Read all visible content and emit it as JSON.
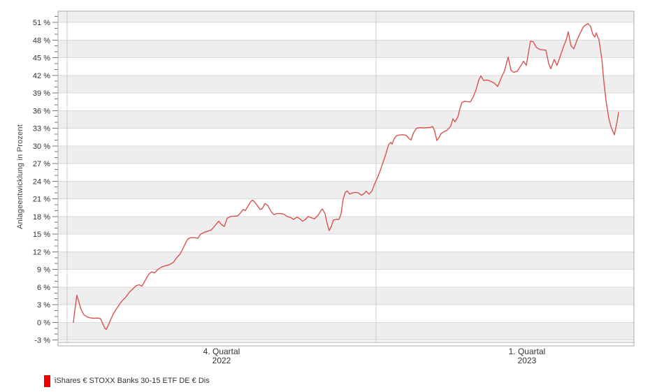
{
  "chart_data": {
    "type": "line",
    "title": "",
    "ylabel": "Anlageentwicklung in Prozent",
    "xlabel": "",
    "grid": true,
    "legend_position": "bottom-left",
    "y_axis": {
      "min": -3.4,
      "max": 52.9,
      "tick_step": 3,
      "minor_tick_step": 1,
      "tick_suffix": " %",
      "ticks": [
        -3,
        0,
        3,
        6,
        9,
        12,
        15,
        18,
        21,
        24,
        27,
        30,
        33,
        36,
        39,
        42,
        45,
        48,
        51
      ],
      "shaded_bands": [
        [
          -3,
          0
        ],
        [
          3,
          6
        ],
        [
          9,
          12
        ],
        [
          15,
          18
        ],
        [
          21,
          24
        ],
        [
          27,
          30
        ],
        [
          33,
          36
        ],
        [
          39,
          42
        ],
        [
          45,
          48
        ],
        [
          51,
          52.9
        ]
      ]
    },
    "x_axis": {
      "unit": "time (quarters)",
      "gridlines": [
        0.0158,
        0.5522
      ],
      "labels": [
        {
          "line1": "4. Quartal",
          "line2": "2022",
          "pos": 0.284
        },
        {
          "line1": "1. Quartal",
          "line2": "2023",
          "pos": 0.8143
        }
      ]
    },
    "colors": {
      "band": "#eeeeee",
      "h_gridline": "#d9d9d9",
      "v_gridline": "#cccccc",
      "frame": "#a8a8a8",
      "tick": "#777777",
      "tick_label": "#333333"
    },
    "legend": {
      "swatch_color": "#ee0000"
    },
    "series": [
      {
        "name": "iShares € STOXX Banks 30-15 ETF DE € Dis",
        "color": "#d9534f",
        "points": [
          [
            0.0267,
            0
          ],
          [
            0.0291,
            2
          ],
          [
            0.0328,
            4.6
          ],
          [
            0.0364,
            3.4
          ],
          [
            0.04,
            2.2
          ],
          [
            0.0449,
            1.3
          ],
          [
            0.051,
            0.9
          ],
          [
            0.057,
            0.75
          ],
          [
            0.0631,
            0.7
          ],
          [
            0.0692,
            0.75
          ],
          [
            0.074,
            0.6
          ],
          [
            0.0777,
            -0.2
          ],
          [
            0.0813,
            -1
          ],
          [
            0.0837,
            -1.2
          ],
          [
            0.0874,
            -0.5
          ],
          [
            0.091,
            0.4
          ],
          [
            0.0959,
            1.4
          ],
          [
            0.1007,
            2.2
          ],
          [
            0.1056,
            2.9
          ],
          [
            0.1117,
            3.7
          ],
          [
            0.1177,
            4.3
          ],
          [
            0.1238,
            5.1
          ],
          [
            0.1299,
            5.7
          ],
          [
            0.1359,
            6.25
          ],
          [
            0.1408,
            6.4
          ],
          [
            0.1456,
            6.15
          ],
          [
            0.1517,
            7.2
          ],
          [
            0.1578,
            8.2
          ],
          [
            0.1626,
            8.6
          ],
          [
            0.1675,
            8.4
          ],
          [
            0.1735,
            9
          ],
          [
            0.1796,
            9.4
          ],
          [
            0.1857,
            9.6
          ],
          [
            0.193,
            9.8
          ],
          [
            0.2002,
            10.2
          ],
          [
            0.2063,
            11
          ],
          [
            0.2124,
            11.7
          ],
          [
            0.2172,
            12.6
          ],
          [
            0.2221,
            13.6
          ],
          [
            0.2257,
            14.2
          ],
          [
            0.2306,
            14.4
          ],
          [
            0.2366,
            14.4
          ],
          [
            0.2427,
            14.3
          ],
          [
            0.2476,
            15
          ],
          [
            0.2536,
            15.3
          ],
          [
            0.2597,
            15.5
          ],
          [
            0.2658,
            15.7
          ],
          [
            0.2706,
            16.2
          ],
          [
            0.2755,
            16.8
          ],
          [
            0.2791,
            17.2
          ],
          [
            0.284,
            16.6
          ],
          [
            0.2888,
            16.3
          ],
          [
            0.2937,
            17.7
          ],
          [
            0.2997,
            18
          ],
          [
            0.3058,
            18.05
          ],
          [
            0.3119,
            18.1
          ],
          [
            0.3167,
            18.6
          ],
          [
            0.3216,
            19.2
          ],
          [
            0.3252,
            19
          ],
          [
            0.3289,
            19.6
          ],
          [
            0.3337,
            20.4
          ],
          [
            0.3374,
            20.8
          ],
          [
            0.341,
            20.5
          ],
          [
            0.3459,
            19.9
          ],
          [
            0.3507,
            19.2
          ],
          [
            0.3544,
            19.3
          ],
          [
            0.3592,
            20.2
          ],
          [
            0.3641,
            19.9
          ],
          [
            0.3701,
            18.8
          ],
          [
            0.375,
            18.3
          ],
          [
            0.3798,
            18.5
          ],
          [
            0.3859,
            18.5
          ],
          [
            0.392,
            18.4
          ],
          [
            0.3981,
            18
          ],
          [
            0.4041,
            17.8
          ],
          [
            0.409,
            17.5
          ],
          [
            0.415,
            17.9
          ],
          [
            0.4199,
            17.6
          ],
          [
            0.4247,
            17.2
          ],
          [
            0.4296,
            17.5
          ],
          [
            0.4345,
            18
          ],
          [
            0.4393,
            17.8
          ],
          [
            0.4454,
            17.6
          ],
          [
            0.4515,
            18.2
          ],
          [
            0.4587,
            19.3
          ],
          [
            0.4636,
            18.5
          ],
          [
            0.4672,
            16.8
          ],
          [
            0.4709,
            15.6
          ],
          [
            0.4745,
            16.3
          ],
          [
            0.4782,
            17.4
          ],
          [
            0.483,
            17.5
          ],
          [
            0.4879,
            17.5
          ],
          [
            0.4915,
            18.5
          ],
          [
            0.4951,
            21
          ],
          [
            0.4988,
            22.1
          ],
          [
            0.5024,
            22.35
          ],
          [
            0.5061,
            21.8
          ],
          [
            0.5109,
            22
          ],
          [
            0.517,
            22.1
          ],
          [
            0.5218,
            22
          ],
          [
            0.5267,
            21.6
          ],
          [
            0.5315,
            21.9
          ],
          [
            0.5352,
            22.3
          ],
          [
            0.54,
            21.8
          ],
          [
            0.5449,
            22.3
          ],
          [
            0.5497,
            23.5
          ],
          [
            0.5546,
            24.6
          ],
          [
            0.5595,
            25.8
          ],
          [
            0.5643,
            27.2
          ],
          [
            0.5692,
            28.6
          ],
          [
            0.574,
            30.2
          ],
          [
            0.5777,
            30.6
          ],
          [
            0.5801,
            30.3
          ],
          [
            0.5837,
            31.2
          ],
          [
            0.5874,
            31.7
          ],
          [
            0.5922,
            31.85
          ],
          [
            0.5983,
            31.9
          ],
          [
            0.6043,
            31.8
          ],
          [
            0.6092,
            31.3
          ],
          [
            0.6128,
            31
          ],
          [
            0.6177,
            32.3
          ],
          [
            0.6226,
            33
          ],
          [
            0.6286,
            33.1
          ],
          [
            0.6347,
            33.05
          ],
          [
            0.6408,
            33.1
          ],
          [
            0.6468,
            33.15
          ],
          [
            0.6505,
            33.3
          ],
          [
            0.6541,
            32.5
          ],
          [
            0.6578,
            30.9
          ],
          [
            0.6614,
            31.4
          ],
          [
            0.665,
            32.1
          ],
          [
            0.6699,
            32.4
          ],
          [
            0.676,
            32.7
          ],
          [
            0.682,
            33.4
          ],
          [
            0.6857,
            34.6
          ],
          [
            0.6893,
            34.1
          ],
          [
            0.6942,
            34.9
          ],
          [
            0.6978,
            36.3
          ],
          [
            0.7015,
            37.4
          ],
          [
            0.7063,
            37.6
          ],
          [
            0.7112,
            37.5
          ],
          [
            0.716,
            37.5
          ],
          [
            0.7209,
            38.3
          ],
          [
            0.7257,
            39.5
          ],
          [
            0.7306,
            41.2
          ],
          [
            0.7342,
            41.9
          ],
          [
            0.7391,
            41.1
          ],
          [
            0.7451,
            41.2
          ],
          [
            0.7512,
            41
          ],
          [
            0.7573,
            40.7
          ],
          [
            0.7633,
            40.1
          ],
          [
            0.7706,
            41.8
          ],
          [
            0.7755,
            42.8
          ],
          [
            0.7791,
            44.2
          ],
          [
            0.7816,
            45.1
          ],
          [
            0.7864,
            42.9
          ],
          [
            0.7913,
            42.5
          ],
          [
            0.7973,
            42.7
          ],
          [
            0.8034,
            43.6
          ],
          [
            0.8083,
            44.4
          ],
          [
            0.8131,
            43.7
          ],
          [
            0.8168,
            45.8
          ],
          [
            0.8204,
            47.8
          ],
          [
            0.8252,
            47.7
          ],
          [
            0.8301,
            46.8
          ],
          [
            0.8362,
            46.4
          ],
          [
            0.8422,
            46.3
          ],
          [
            0.8471,
            46.3
          ],
          [
            0.8519,
            44
          ],
          [
            0.8556,
            43.1
          ],
          [
            0.8616,
            44.7
          ],
          [
            0.8665,
            43.7
          ],
          [
            0.8726,
            45.4
          ],
          [
            0.8774,
            46.8
          ],
          [
            0.8823,
            48
          ],
          [
            0.8859,
            49.4
          ],
          [
            0.8908,
            47
          ],
          [
            0.8956,
            46.5
          ],
          [
            0.9017,
            48.1
          ],
          [
            0.9078,
            49.4
          ],
          [
            0.9126,
            50.3
          ],
          [
            0.9199,
            50.8
          ],
          [
            0.9248,
            50.3
          ],
          [
            0.9284,
            49
          ],
          [
            0.932,
            48.5
          ],
          [
            0.9345,
            49.2
          ],
          [
            0.9393,
            48
          ],
          [
            0.9442,
            44.8
          ],
          [
            0.9478,
            40.9
          ],
          [
            0.9515,
            37.7
          ],
          [
            0.9563,
            34.7
          ],
          [
            0.96,
            33.3
          ],
          [
            0.966,
            31.9
          ],
          [
            0.9709,
            34.2
          ],
          [
            0.9733,
            35.7
          ]
        ]
      }
    ]
  }
}
